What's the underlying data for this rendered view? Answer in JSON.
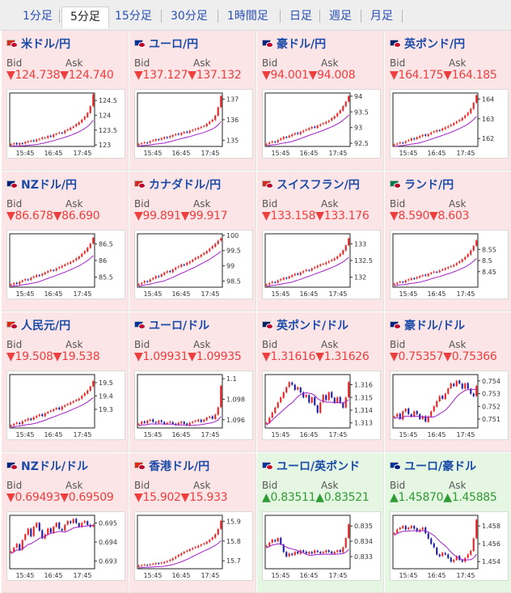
{
  "timeframe_tabs": [
    {
      "label": "1分足",
      "active": false
    },
    {
      "label": "5分足",
      "active": true
    },
    {
      "label": "15分足",
      "active": false
    },
    {
      "label": "30分足",
      "active": false
    },
    {
      "label": "1時間足",
      "active": false
    },
    {
      "label": "日足",
      "active": false
    },
    {
      "label": "週足",
      "active": false
    },
    {
      "label": "月足",
      "active": false
    }
  ],
  "colors": {
    "down_bg": "#fbe5e7",
    "up_bg": "#e5f6e2",
    "down_text": "#ee3e3e",
    "up_text": "#2f9b34",
    "pair_text": "#1b4ba8",
    "tab_link": "#2a4fb3",
    "candle_up": "#ee2020",
    "candle_down": "#1c1ca8",
    "ma_line": "#a020c8"
  },
  "labels": {
    "bid": "Bid",
    "ask": "Ask"
  },
  "quotes": [
    {
      "pair": "米ドル/円",
      "direction": "down",
      "bid": "▼124.738",
      "ask": "▼124.740",
      "flag_icon": "usd-jpy-flag-icon",
      "flag_colors": [
        "#d52b1e",
        "#bf0a30"
      ],
      "chart": {
        "y_ticks": [
          "124.5",
          "124",
          "123.5",
          "123"
        ],
        "y_range": [
          122.95,
          124.75
        ],
        "x_ticks": [
          "15:45",
          "16:45",
          "17:45"
        ],
        "closes": [
          123.03,
          123.05,
          123.02,
          123.06,
          123.04,
          123.1,
          123.12,
          123.14,
          123.13,
          123.18,
          123.2,
          123.25,
          123.24,
          123.3,
          123.28,
          123.35,
          123.38,
          123.42,
          123.4,
          123.48,
          123.52,
          123.58,
          123.62,
          123.7,
          123.76,
          123.85,
          123.95,
          124.08,
          124.3,
          124.7
        ]
      }
    },
    {
      "pair": "ユーロ/円",
      "direction": "down",
      "bid": "▼137.127",
      "ask": "▼137.132",
      "flag_icon": "eur-jpy-flag-icon",
      "flag_colors": [
        "#003399",
        "#bc002d"
      ],
      "chart": {
        "y_ticks": [
          "137",
          "136",
          "135"
        ],
        "y_range": [
          134.7,
          137.3
        ],
        "x_ticks": [
          "15:45",
          "16:45",
          "17:45"
        ],
        "closes": [
          134.82,
          134.86,
          134.9,
          134.88,
          134.95,
          135.0,
          135.05,
          135.02,
          135.1,
          135.15,
          135.12,
          135.2,
          135.25,
          135.3,
          135.28,
          135.35,
          135.4,
          135.38,
          135.46,
          135.5,
          135.55,
          135.6,
          135.65,
          135.7,
          135.8,
          135.9,
          136.0,
          136.2,
          136.6,
          137.15
        ]
      }
    },
    {
      "pair": "豪ドル/円",
      "direction": "down",
      "bid": "▼94.001",
      "ask": "▼94.008",
      "flag_icon": "aud-jpy-flag-icon",
      "flag_colors": [
        "#00247d",
        "#bc002d"
      ],
      "chart": {
        "y_ticks": [
          "94",
          "93.5",
          "93",
          "92.5"
        ],
        "y_range": [
          92.4,
          94.1
        ],
        "x_ticks": [
          "15:45",
          "16:45",
          "17:45"
        ],
        "closes": [
          92.48,
          92.52,
          92.56,
          92.54,
          92.6,
          92.65,
          92.7,
          92.68,
          92.74,
          92.78,
          92.82,
          92.8,
          92.86,
          92.9,
          92.94,
          92.98,
          93.02,
          93.0,
          93.06,
          93.1,
          93.14,
          93.18,
          93.22,
          93.3,
          93.36,
          93.45,
          93.55,
          93.68,
          93.82,
          94.0
        ]
      }
    },
    {
      "pair": "英ポンド/円",
      "direction": "down",
      "bid": "▼164.175",
      "ask": "▼164.185",
      "flag_icon": "gbp-jpy-flag-icon",
      "flag_colors": [
        "#012169",
        "#c8102e"
      ],
      "chart": {
        "y_ticks": [
          "164",
          "163",
          "162"
        ],
        "y_range": [
          161.6,
          164.3
        ],
        "x_ticks": [
          "15:45",
          "16:45",
          "17:45"
        ],
        "closes": [
          161.7,
          161.74,
          161.8,
          161.78,
          161.86,
          161.92,
          162.0,
          161.96,
          162.06,
          162.12,
          162.18,
          162.14,
          162.22,
          162.3,
          162.36,
          162.42,
          162.4,
          162.5,
          162.56,
          162.62,
          162.7,
          162.78,
          162.86,
          162.94,
          163.04,
          163.16,
          163.3,
          163.5,
          163.8,
          164.18
        ]
      }
    },
    {
      "pair": "NZドル/円",
      "direction": "down",
      "bid": "▼86.678",
      "ask": "▼86.690",
      "flag_icon": "nzd-jpy-flag-icon",
      "flag_colors": [
        "#00247d",
        "#bc002d"
      ],
      "chart": {
        "y_ticks": [
          "86.5",
          "86",
          "85.5"
        ],
        "y_range": [
          85.2,
          86.8
        ],
        "x_ticks": [
          "15:45",
          "16:45",
          "17:45"
        ],
        "closes": [
          85.28,
          85.32,
          85.3,
          85.36,
          85.4,
          85.44,
          85.42,
          85.48,
          85.52,
          85.56,
          85.54,
          85.6,
          85.64,
          85.68,
          85.72,
          85.7,
          85.76,
          85.8,
          85.84,
          85.88,
          85.92,
          85.96,
          86.0,
          86.06,
          86.12,
          86.2,
          86.28,
          86.38,
          86.5,
          86.68
        ]
      }
    },
    {
      "pair": "カナダドル/円",
      "direction": "down",
      "bid": "▼99.891",
      "ask": "▼99.917",
      "flag_icon": "cad-jpy-flag-icon",
      "flag_colors": [
        "#d52b1e",
        "#bc002d"
      ],
      "chart": {
        "y_ticks": [
          "100",
          "99.5",
          "99",
          "98.5"
        ],
        "y_range": [
          98.3,
          100.05
        ],
        "x_ticks": [
          "15:45",
          "16:45",
          "17:45"
        ],
        "closes": [
          98.4,
          98.44,
          98.5,
          98.48,
          98.55,
          98.6,
          98.66,
          98.64,
          98.72,
          98.78,
          98.82,
          98.8,
          98.88,
          98.94,
          98.98,
          99.04,
          99.02,
          99.1,
          99.14,
          99.2,
          99.26,
          99.3,
          99.36,
          99.42,
          99.48,
          99.56,
          99.64,
          99.72,
          99.82,
          99.9
        ]
      }
    },
    {
      "pair": "スイスフラン/円",
      "direction": "down",
      "bid": "▼133.158",
      "ask": "▼133.176",
      "flag_icon": "chf-jpy-flag-icon",
      "flag_colors": [
        "#d52b1e",
        "#bc002d"
      ],
      "chart": {
        "y_ticks": [
          "133",
          "132.5",
          "132"
        ],
        "y_range": [
          131.7,
          133.3
        ],
        "x_ticks": [
          "15:45",
          "16:45",
          "17:45"
        ],
        "closes": [
          131.78,
          131.82,
          131.86,
          131.84,
          131.9,
          131.94,
          131.98,
          131.96,
          132.02,
          132.06,
          132.1,
          132.08,
          132.14,
          132.18,
          132.22,
          132.2,
          132.26,
          132.3,
          132.34,
          132.38,
          132.4,
          132.44,
          132.48,
          132.52,
          132.56,
          132.62,
          132.7,
          132.8,
          132.95,
          133.16
        ]
      }
    },
    {
      "pair": "ランド/円",
      "direction": "down",
      "bid": "▼8.590",
      "ask": "▼8.603",
      "flag_icon": "zar-jpy-flag-icon",
      "flag_colors": [
        "#007a4d",
        "#bc002d"
      ],
      "chart": {
        "y_ticks": [
          "8.55",
          "8.5",
          "8.45"
        ],
        "y_range": [
          8.38,
          8.62
        ],
        "x_ticks": [
          "15:45",
          "16:45",
          "17:45"
        ],
        "closes": [
          8.395,
          8.4,
          8.405,
          8.402,
          8.41,
          8.415,
          8.42,
          8.418,
          8.425,
          8.43,
          8.434,
          8.432,
          8.44,
          8.445,
          8.45,
          8.448,
          8.455,
          8.46,
          8.465,
          8.47,
          8.475,
          8.48,
          8.488,
          8.496,
          8.505,
          8.515,
          8.528,
          8.545,
          8.565,
          8.59
        ]
      }
    },
    {
      "pair": "人民元/円",
      "direction": "down",
      "bid": "▼19.508",
      "ask": "▼19.538",
      "flag_icon": "cny-jpy-flag-icon",
      "flag_colors": [
        "#de2910",
        "#bc002d"
      ],
      "chart": {
        "y_ticks": [
          "19.5",
          "19.4",
          "19.3"
        ],
        "y_range": [
          19.16,
          19.56
        ],
        "x_ticks": [
          "15:45",
          "16:45",
          "17:45"
        ],
        "closes": [
          19.18,
          19.19,
          19.2,
          19.19,
          19.21,
          19.22,
          19.23,
          19.22,
          19.24,
          19.25,
          19.26,
          19.25,
          19.27,
          19.28,
          19.29,
          19.3,
          19.31,
          19.3,
          19.32,
          19.33,
          19.34,
          19.35,
          19.36,
          19.37,
          19.38,
          19.4,
          19.42,
          19.44,
          19.47,
          19.51
        ]
      }
    },
    {
      "pair": "ユーロ/ドル",
      "direction": "down",
      "bid": "▼1.09931",
      "ask": "▼1.09935",
      "flag_icon": "eur-usd-flag-icon",
      "flag_colors": [
        "#003399",
        "#bf0a30"
      ],
      "chart": {
        "y_ticks": [
          "1.1",
          "1.098",
          "1.096"
        ],
        "y_range": [
          1.0952,
          1.1004
        ],
        "x_ticks": [
          "15:45",
          "16:45",
          "17:45"
        ],
        "closes": [
          1.0956,
          1.0958,
          1.0957,
          1.0959,
          1.096,
          1.0958,
          1.0957,
          1.0959,
          1.0958,
          1.0956,
          1.0957,
          1.0958,
          1.0956,
          1.0955,
          1.0957,
          1.0958,
          1.0956,
          1.0955,
          1.0957,
          1.0958,
          1.0959,
          1.096,
          1.0958,
          1.096,
          1.0962,
          1.0963,
          1.0961,
          1.0965,
          1.0972,
          1.0993
        ]
      }
    },
    {
      "pair": "英ポンド/ドル",
      "direction": "down",
      "bid": "▼1.31616",
      "ask": "▼1.31626",
      "flag_icon": "gbp-usd-flag-icon",
      "flag_colors": [
        "#012169",
        "#bf0a30"
      ],
      "chart": {
        "y_ticks": [
          "1.316",
          "1.315",
          "1.314",
          "1.313"
        ],
        "y_range": [
          1.3126,
          1.3168
        ],
        "x_ticks": [
          "15:45",
          "16:45",
          "17:45"
        ],
        "closes": [
          1.313,
          1.3134,
          1.3138,
          1.3142,
          1.3146,
          1.315,
          1.3154,
          1.3158,
          1.3162,
          1.316,
          1.3156,
          1.3158,
          1.3154,
          1.315,
          1.3152,
          1.3146,
          1.315,
          1.3144,
          1.3138,
          1.3146,
          1.3152,
          1.3148,
          1.3154,
          1.315,
          1.3146,
          1.315,
          1.3146,
          1.3142,
          1.315,
          1.3162
        ]
      }
    },
    {
      "pair": "豪ドル/ドル",
      "direction": "down",
      "bid": "▼0.75357",
      "ask": "▼0.75366",
      "flag_icon": "aud-usd-flag-icon",
      "flag_colors": [
        "#00247d",
        "#bf0a30"
      ],
      "chart": {
        "y_ticks": [
          "0.754",
          "0.753",
          "0.752",
          "0.751"
        ],
        "y_range": [
          0.7503,
          0.7545
        ],
        "x_ticks": [
          "15:45",
          "16:45",
          "17:45"
        ],
        "closes": [
          0.7512,
          0.7514,
          0.751,
          0.7516,
          0.7518,
          0.7514,
          0.7512,
          0.7516,
          0.7514,
          0.751,
          0.7512,
          0.7508,
          0.7512,
          0.7516,
          0.752,
          0.7524,
          0.7528,
          0.7526,
          0.753,
          0.7534,
          0.7538,
          0.7536,
          0.754,
          0.7538,
          0.7534,
          0.7538,
          0.7534,
          0.753,
          0.7528,
          0.7536
        ]
      }
    },
    {
      "pair": "NZドル/ドル",
      "direction": "down",
      "bid": "▼0.69493",
      "ask": "▼0.69509",
      "flag_icon": "nzd-usd-flag-icon",
      "flag_colors": [
        "#00247d",
        "#bf0a30"
      ],
      "chart": {
        "y_ticks": [
          "0.695",
          "0.694",
          "0.693"
        ],
        "y_range": [
          0.6926,
          0.6954
        ],
        "x_ticks": [
          "15:45",
          "16:45",
          "17:45"
        ],
        "closes": [
          0.6935,
          0.6937,
          0.6939,
          0.6936,
          0.6941,
          0.6944,
          0.6947,
          0.6943,
          0.6948,
          0.695,
          0.6946,
          0.6942,
          0.6944,
          0.6947,
          0.6945,
          0.6948,
          0.695,
          0.6947,
          0.6946,
          0.6949,
          0.6951,
          0.695,
          0.6952,
          0.695,
          0.6948,
          0.695,
          0.6951,
          0.6949,
          0.6948,
          0.6949
        ]
      }
    },
    {
      "pair": "香港ドル/円",
      "direction": "down",
      "bid": "▼15.902",
      "ask": "▼15.933",
      "flag_icon": "hkd-jpy-flag-icon",
      "flag_colors": [
        "#de2910",
        "#bc002d"
      ],
      "chart": {
        "y_ticks": [
          "15.9",
          "15.8",
          "15.7"
        ],
        "y_range": [
          15.66,
          15.93
        ],
        "x_ticks": [
          "15:45",
          "16:45",
          "17:45"
        ],
        "closes": [
          15.675,
          15.678,
          15.68,
          15.678,
          15.682,
          15.685,
          15.688,
          15.686,
          15.69,
          15.694,
          15.698,
          15.705,
          15.712,
          15.72,
          15.73,
          15.738,
          15.745,
          15.752,
          15.758,
          15.764,
          15.77,
          15.776,
          15.782,
          15.788,
          15.796,
          15.806,
          15.818,
          15.834,
          15.86,
          15.902
        ]
      }
    },
    {
      "pair": "ユーロ/英ポンド",
      "direction": "up",
      "bid": "▲0.83511",
      "ask": "▲0.83521",
      "flag_icon": "eur-gbp-flag-icon",
      "flag_colors": [
        "#003399",
        "#c8102e"
      ],
      "chart": {
        "y_ticks": [
          "0.835",
          "0.834",
          "0.833"
        ],
        "y_range": [
          0.8322,
          0.8357
        ],
        "x_ticks": [
          "15:45",
          "16:45",
          "17:45"
        ],
        "closes": [
          0.8337,
          0.8339,
          0.8341,
          0.834,
          0.8342,
          0.8338,
          0.8333,
          0.833,
          0.8332,
          0.8331,
          0.8333,
          0.8332,
          0.8334,
          0.8333,
          0.8332,
          0.8333,
          0.8332,
          0.8334,
          0.8333,
          0.8332,
          0.8333,
          0.8334,
          0.8333,
          0.8332,
          0.8333,
          0.8334,
          0.8333,
          0.8336,
          0.8342,
          0.8351
        ]
      }
    },
    {
      "pair": "ユーロ/豪ドル",
      "direction": "up",
      "bid": "▲1.45870",
      "ask": "▲1.45885",
      "flag_icon": "eur-aud-flag-icon",
      "flag_colors": [
        "#003399",
        "#00247d"
      ],
      "chart": {
        "y_ticks": [
          "1.458",
          "1.456",
          "1.454"
        ],
        "y_range": [
          1.4532,
          1.4592
        ],
        "x_ticks": [
          "15:45",
          "16:45",
          "17:45"
        ],
        "closes": [
          1.4572,
          1.4576,
          1.4578,
          1.458,
          1.4576,
          1.4578,
          1.458,
          1.4577,
          1.4574,
          1.4576,
          1.4578,
          1.4572,
          1.4566,
          1.456,
          1.4556,
          1.4548,
          1.4546,
          1.455,
          1.4548,
          1.4544,
          1.454,
          1.4542,
          1.4546,
          1.4542,
          1.454,
          1.4544,
          1.4548,
          1.4552,
          1.4566,
          1.4587
        ]
      }
    }
  ]
}
